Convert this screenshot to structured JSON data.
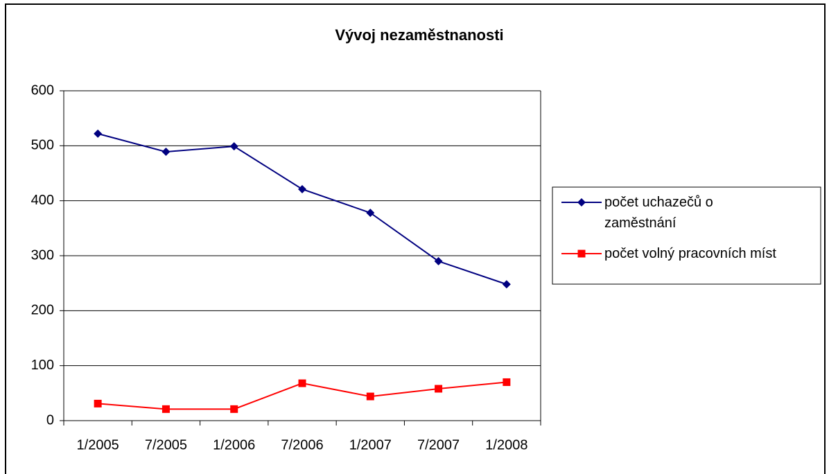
{
  "chart_data": {
    "type": "line",
    "title": "Vývoj nezaměstnanosti",
    "categories": [
      "1/2005",
      "7/2005",
      "1/2006",
      "7/2006",
      "1/2007",
      "7/2007",
      "1/2008"
    ],
    "series": [
      {
        "name": "počet uchazečů o zaměstnání",
        "color": "#000080",
        "marker": "diamond",
        "values": [
          522,
          489,
          499,
          421,
          378,
          290,
          248
        ]
      },
      {
        "name": "počet volný pracovních míst",
        "color": "#ff0000",
        "marker": "square",
        "values": [
          31,
          21,
          21,
          68,
          44,
          58,
          70
        ]
      }
    ],
    "ylim": [
      0,
      600
    ],
    "yticks": [
      0,
      100,
      200,
      300,
      400,
      500,
      600
    ],
    "grid": true,
    "legend": "right"
  }
}
